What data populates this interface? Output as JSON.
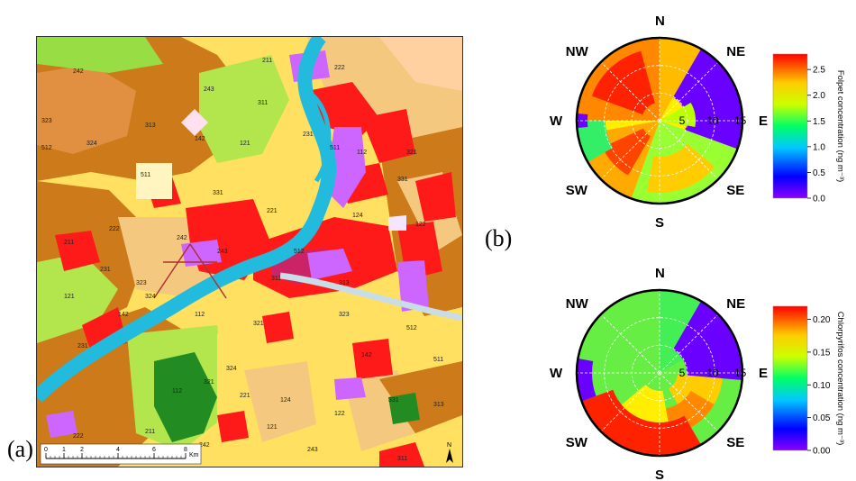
{
  "panels": {
    "a_label": "(a)",
    "b_label": "(b)"
  },
  "map": {
    "scale_bar": {
      "ticks": [
        "0",
        "1",
        "2",
        "4",
        "6",
        "8"
      ],
      "unit": "Km"
    },
    "north_arrow_label": "N",
    "land_use_codes": [
      "211",
      "222",
      "242",
      "243",
      "311",
      "313",
      "324",
      "121",
      "142",
      "231",
      "112",
      "321",
      "323",
      "512",
      "511",
      "331",
      "221",
      "124",
      "122"
    ],
    "colors": {
      "urban": "#ff1a1a",
      "industrial": "#cc66ff",
      "arable": "#ffe060",
      "complex_cultivation": "#f5c880",
      "agri_natural": "#ffd0a0",
      "broadleaf_forest": "#cc7a1a",
      "mixed_forest": "#228b22",
      "grassland": "#b3e64d",
      "shrub": "#99dd44",
      "water": "#22bbdd",
      "pasture": "#e6e64d"
    }
  },
  "polar_plots": [
    {
      "id": "folpet",
      "directions": {
        "n": "N",
        "ne": "NE",
        "e": "E",
        "se": "SE",
        "s": "S",
        "sw": "SW",
        "w": "W",
        "nw": "NW"
      },
      "ring_labels": [
        "5",
        "10",
        "15"
      ],
      "colorbar": {
        "label": "Folpet concentration (ng m⁻³)",
        "ticks": [
          "2.5",
          "2.0",
          "1.5",
          "1.0",
          "0.5",
          "0.0"
        ],
        "max": 2.8
      }
    },
    {
      "id": "chlorpyrifos",
      "directions": {
        "n": "N",
        "ne": "NE",
        "e": "E",
        "se": "SE",
        "s": "S",
        "sw": "SW",
        "w": "W",
        "nw": "NW"
      },
      "ring_labels": [
        "5",
        "10",
        "15"
      ],
      "colorbar": {
        "label": "Chlorpyrifos concentration (ng m⁻³)",
        "ticks": [
          "0.20",
          "0.15",
          "0.10",
          "0.05",
          "0.00"
        ],
        "max": 0.22
      }
    }
  ]
}
